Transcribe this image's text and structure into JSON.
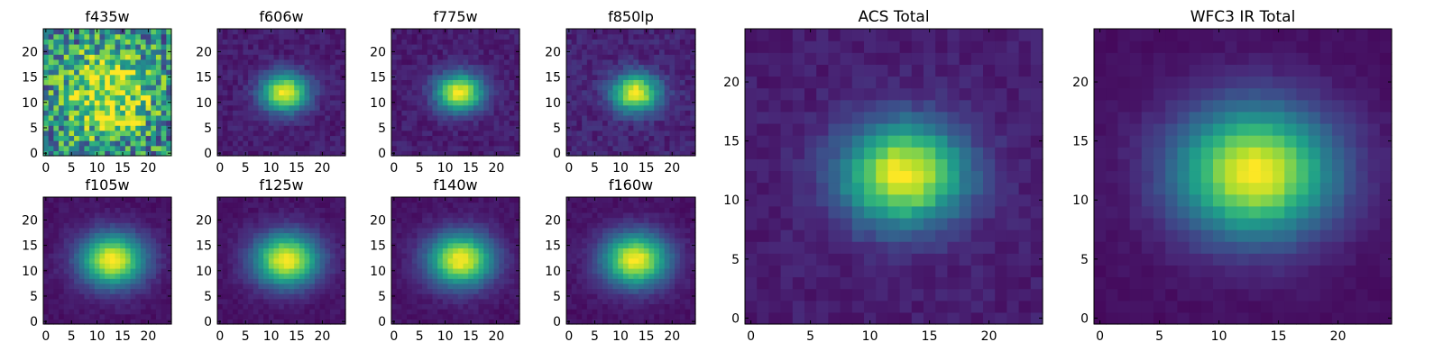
{
  "chart_data": [
    {
      "type": "heatmap",
      "title": "f435w",
      "size": 25,
      "xticks": [
        0,
        5,
        10,
        15,
        20
      ],
      "yticks": [
        0,
        5,
        10,
        15,
        20
      ],
      "xlim": [
        -0.5,
        24.5
      ],
      "ylim": [
        -0.5,
        24.5
      ],
      "center": [
        12.5,
        12.0
      ],
      "sigma": [
        6.0,
        6.0
      ],
      "floor": 0.45,
      "noise": 0.35,
      "colormap": "viridis"
    },
    {
      "type": "heatmap",
      "title": "f606w",
      "size": 25,
      "xticks": [
        0,
        5,
        10,
        15,
        20
      ],
      "yticks": [
        0,
        5,
        10,
        15,
        20
      ],
      "xlim": [
        -0.5,
        24.5
      ],
      "ylim": [
        -0.5,
        24.5
      ],
      "center": [
        12.7,
        12.0
      ],
      "sigma": [
        3.2,
        2.6
      ],
      "floor": 0.08,
      "noise": 0.05,
      "colormap": "viridis"
    },
    {
      "type": "heatmap",
      "title": "f775w",
      "size": 25,
      "xticks": [
        0,
        5,
        10,
        15,
        20
      ],
      "yticks": [
        0,
        5,
        10,
        15,
        20
      ],
      "xlim": [
        -0.5,
        24.5
      ],
      "ylim": [
        -0.5,
        24.5
      ],
      "center": [
        12.8,
        12.0
      ],
      "sigma": [
        3.2,
        2.6
      ],
      "floor": 0.08,
      "noise": 0.05,
      "colormap": "viridis"
    },
    {
      "type": "heatmap",
      "title": "f850lp",
      "size": 25,
      "xticks": [
        0,
        5,
        10,
        15,
        20
      ],
      "yticks": [
        0,
        5,
        10,
        15,
        20
      ],
      "xlim": [
        -0.5,
        24.5
      ],
      "ylim": [
        -0.5,
        24.5
      ],
      "center": [
        12.9,
        11.9
      ],
      "sigma": [
        3.2,
        2.6
      ],
      "floor": 0.1,
      "noise": 0.06,
      "colormap": "viridis"
    },
    {
      "type": "heatmap",
      "title": "f105w",
      "size": 25,
      "xticks": [
        0,
        5,
        10,
        15,
        20
      ],
      "yticks": [
        0,
        5,
        10,
        15,
        20
      ],
      "xlim": [
        -0.5,
        24.5
      ],
      "ylim": [
        -0.5,
        24.5
      ],
      "center": [
        13.0,
        12.2
      ],
      "sigma": [
        4.4,
        3.6
      ],
      "floor": 0.05,
      "noise": 0.03,
      "colormap": "viridis"
    },
    {
      "type": "heatmap",
      "title": "f125w",
      "size": 25,
      "xticks": [
        0,
        5,
        10,
        15,
        20
      ],
      "yticks": [
        0,
        5,
        10,
        15,
        20
      ],
      "xlim": [
        -0.5,
        24.5
      ],
      "ylim": [
        -0.5,
        24.5
      ],
      "center": [
        13.0,
        12.2
      ],
      "sigma": [
        4.4,
        3.6
      ],
      "floor": 0.05,
      "noise": 0.03,
      "colormap": "viridis"
    },
    {
      "type": "heatmap",
      "title": "f140w",
      "size": 25,
      "xticks": [
        0,
        5,
        10,
        15,
        20
      ],
      "yticks": [
        0,
        5,
        10,
        15,
        20
      ],
      "xlim": [
        -0.5,
        24.5
      ],
      "ylim": [
        -0.5,
        24.5
      ],
      "center": [
        13.0,
        12.2
      ],
      "sigma": [
        4.4,
        3.6
      ],
      "floor": 0.05,
      "noise": 0.03,
      "colormap": "viridis"
    },
    {
      "type": "heatmap",
      "title": "f160w",
      "size": 25,
      "xticks": [
        0,
        5,
        10,
        15,
        20
      ],
      "yticks": [
        0,
        5,
        10,
        15,
        20
      ],
      "xlim": [
        -0.5,
        24.5
      ],
      "ylim": [
        -0.5,
        24.5
      ],
      "center": [
        12.9,
        12.2
      ],
      "sigma": [
        4.4,
        3.6
      ],
      "floor": 0.05,
      "noise": 0.03,
      "colormap": "viridis"
    },
    {
      "type": "heatmap",
      "title": "ACS Total",
      "size": 25,
      "xticks": [
        0,
        5,
        10,
        15,
        20
      ],
      "yticks": [
        0,
        5,
        10,
        15,
        20
      ],
      "xlim": [
        -0.5,
        24.5
      ],
      "ylim": [
        -0.5,
        24.5
      ],
      "center": [
        12.8,
        12.2
      ],
      "sigma": [
        3.6,
        3.0
      ],
      "floor": 0.08,
      "noise": 0.04,
      "colormap": "viridis"
    },
    {
      "type": "heatmap",
      "title": "WFC3 IR Total",
      "size": 25,
      "xticks": [
        0,
        5,
        10,
        15,
        20
      ],
      "yticks": [
        0,
        5,
        10,
        15,
        20
      ],
      "xlim": [
        -0.5,
        24.5
      ],
      "ylim": [
        -0.5,
        24.5
      ],
      "center": [
        13.0,
        12.4
      ],
      "sigma": [
        4.6,
        3.8
      ],
      "floor": 0.04,
      "noise": 0.02,
      "colormap": "viridis"
    }
  ]
}
